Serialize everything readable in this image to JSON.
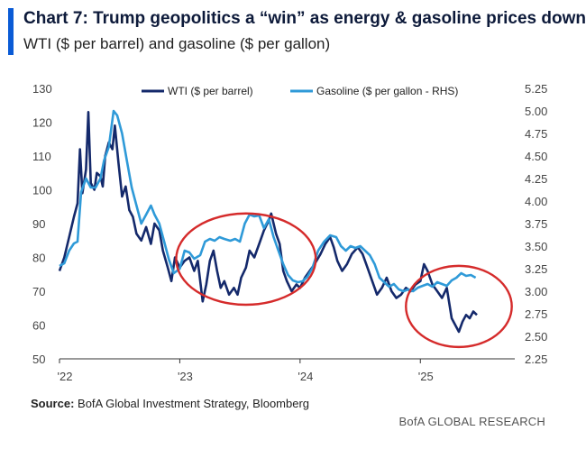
{
  "header": {
    "title": "Chart 7: Trump geopolitics a “win” as energy & gasoline prices down",
    "subtitle": "WTI ($ per barrel) and gasoline ($ per gallon)"
  },
  "footer": {
    "source_label": "Source:",
    "source_text": " BofA Global Investment Strategy, Bloomberg",
    "credit": "BofA GLOBAL RESEARCH"
  },
  "colors": {
    "accent": "#0a5bd6",
    "wti": "#14296b",
    "gasoline": "#2f9ad8",
    "ellipse": "#d52b2b"
  },
  "chart_data": {
    "type": "line",
    "title": "Chart 7: Trump geopolitics a “win” as energy & gasoline prices down",
    "subtitle": "WTI ($ per barrel) and gasoline ($ per gallon)",
    "x_ticks": [
      {
        "label": "'22",
        "t": 2022.0
      },
      {
        "label": "'23",
        "t": 2023.0
      },
      {
        "label": "'24",
        "t": 2024.0
      },
      {
        "label": "'25",
        "t": 2025.0
      }
    ],
    "x_range": [
      2022.0,
      2025.65
    ],
    "y_left": {
      "label": "WTI ($ per barrel)",
      "range": [
        50,
        130
      ],
      "ticks": [
        "130",
        "120",
        "110",
        "100",
        "90",
        "80",
        "70",
        "60",
        "50"
      ]
    },
    "y_right": {
      "label": "Gasoline ($ per gallon - RHS)",
      "range": [
        2.25,
        5.25
      ],
      "ticks": [
        "5.25",
        "5.00",
        "4.75",
        "4.50",
        "4.25",
        "4.00",
        "3.75",
        "3.50",
        "3.25",
        "3.00",
        "2.75",
        "2.50",
        "2.25"
      ]
    },
    "legend": {
      "position": "top",
      "entries": [
        "WTI ($ per barrel)",
        "Gasoline ($ per gallon - RHS)"
      ]
    },
    "series": [
      {
        "name": "WTI ($ per barrel)",
        "axis": "left",
        "points": [
          [
            2022.0,
            76
          ],
          [
            2022.04,
            80
          ],
          [
            2022.08,
            86
          ],
          [
            2022.12,
            92
          ],
          [
            2022.15,
            96
          ],
          [
            2022.17,
            112
          ],
          [
            2022.19,
            99
          ],
          [
            2022.22,
            106
          ],
          [
            2022.24,
            123
          ],
          [
            2022.26,
            102
          ],
          [
            2022.29,
            100
          ],
          [
            2022.31,
            105
          ],
          [
            2022.34,
            104
          ],
          [
            2022.36,
            101
          ],
          [
            2022.38,
            110
          ],
          [
            2022.41,
            114
          ],
          [
            2022.44,
            112
          ],
          [
            2022.46,
            119
          ],
          [
            2022.49,
            108
          ],
          [
            2022.52,
            98
          ],
          [
            2022.55,
            101
          ],
          [
            2022.58,
            94
          ],
          [
            2022.61,
            92
          ],
          [
            2022.64,
            87
          ],
          [
            2022.68,
            85
          ],
          [
            2022.72,
            89
          ],
          [
            2022.76,
            84
          ],
          [
            2022.79,
            90
          ],
          [
            2022.83,
            88
          ],
          [
            2022.86,
            82
          ],
          [
            2022.9,
            77
          ],
          [
            2022.93,
            73
          ],
          [
            2022.96,
            80
          ],
          [
            2023.0,
            77
          ],
          [
            2023.04,
            79
          ],
          [
            2023.08,
            80
          ],
          [
            2023.12,
            76
          ],
          [
            2023.15,
            79
          ],
          [
            2023.19,
            67
          ],
          [
            2023.22,
            72
          ],
          [
            2023.25,
            79
          ],
          [
            2023.28,
            82
          ],
          [
            2023.31,
            76
          ],
          [
            2023.34,
            71
          ],
          [
            2023.37,
            73
          ],
          [
            2023.41,
            69
          ],
          [
            2023.45,
            71
          ],
          [
            2023.48,
            69
          ],
          [
            2023.51,
            74
          ],
          [
            2023.55,
            77
          ],
          [
            2023.58,
            82
          ],
          [
            2023.62,
            80
          ],
          [
            2023.66,
            84
          ],
          [
            2023.7,
            88
          ],
          [
            2023.74,
            91
          ],
          [
            2023.76,
            93
          ],
          [
            2023.8,
            87
          ],
          [
            2023.83,
            84
          ],
          [
            2023.86,
            76
          ],
          [
            2023.89,
            73
          ],
          [
            2023.93,
            70
          ],
          [
            2023.97,
            72
          ],
          [
            2024.0,
            71
          ],
          [
            2024.04,
            74
          ],
          [
            2024.08,
            76
          ],
          [
            2024.12,
            78
          ],
          [
            2024.17,
            81
          ],
          [
            2024.21,
            84
          ],
          [
            2024.25,
            86
          ],
          [
            2024.28,
            83
          ],
          [
            2024.31,
            79
          ],
          [
            2024.35,
            76
          ],
          [
            2024.39,
            78
          ],
          [
            2024.43,
            81
          ],
          [
            2024.48,
            83
          ],
          [
            2024.52,
            81
          ],
          [
            2024.56,
            77
          ],
          [
            2024.6,
            73
          ],
          [
            2024.64,
            69
          ],
          [
            2024.68,
            71
          ],
          [
            2024.72,
            74
          ],
          [
            2024.76,
            70
          ],
          [
            2024.8,
            68
          ],
          [
            2024.84,
            69
          ],
          [
            2024.88,
            71
          ],
          [
            2024.92,
            70
          ],
          [
            2024.96,
            72
          ],
          [
            2025.0,
            73
          ],
          [
            2025.03,
            78
          ],
          [
            2025.06,
            76
          ],
          [
            2025.1,
            72
          ],
          [
            2025.14,
            70
          ],
          [
            2025.18,
            68
          ],
          [
            2025.22,
            71
          ],
          [
            2025.26,
            62
          ],
          [
            2025.29,
            60
          ],
          [
            2025.32,
            58
          ],
          [
            2025.35,
            61
          ],
          [
            2025.38,
            63
          ],
          [
            2025.41,
            62
          ],
          [
            2025.44,
            64
          ],
          [
            2025.47,
            63
          ]
        ]
      },
      {
        "name": "Gasoline ($ per gallon - RHS)",
        "axis": "right",
        "points": [
          [
            2022.0,
            3.28
          ],
          [
            2022.04,
            3.31
          ],
          [
            2022.08,
            3.45
          ],
          [
            2022.12,
            3.53
          ],
          [
            2022.15,
            3.55
          ],
          [
            2022.18,
            4.1
          ],
          [
            2022.22,
            4.25
          ],
          [
            2022.26,
            4.15
          ],
          [
            2022.3,
            4.15
          ],
          [
            2022.34,
            4.25
          ],
          [
            2022.37,
            4.45
          ],
          [
            2022.41,
            4.6
          ],
          [
            2022.45,
            5.0
          ],
          [
            2022.48,
            4.95
          ],
          [
            2022.52,
            4.75
          ],
          [
            2022.56,
            4.45
          ],
          [
            2022.6,
            4.15
          ],
          [
            2022.64,
            3.95
          ],
          [
            2022.68,
            3.75
          ],
          [
            2022.72,
            3.85
          ],
          [
            2022.76,
            3.95
          ],
          [
            2022.79,
            3.85
          ],
          [
            2022.83,
            3.75
          ],
          [
            2022.87,
            3.55
          ],
          [
            2022.91,
            3.35
          ],
          [
            2022.95,
            3.2
          ],
          [
            2023.0,
            3.25
          ],
          [
            2023.04,
            3.45
          ],
          [
            2023.08,
            3.43
          ],
          [
            2023.12,
            3.36
          ],
          [
            2023.17,
            3.4
          ],
          [
            2023.21,
            3.55
          ],
          [
            2023.25,
            3.58
          ],
          [
            2023.29,
            3.56
          ],
          [
            2023.33,
            3.6
          ],
          [
            2023.37,
            3.58
          ],
          [
            2023.42,
            3.56
          ],
          [
            2023.46,
            3.58
          ],
          [
            2023.5,
            3.55
          ],
          [
            2023.54,
            3.75
          ],
          [
            2023.58,
            3.85
          ],
          [
            2023.62,
            3.83
          ],
          [
            2023.66,
            3.84
          ],
          [
            2023.7,
            3.7
          ],
          [
            2023.74,
            3.8
          ],
          [
            2023.78,
            3.6
          ],
          [
            2023.82,
            3.45
          ],
          [
            2023.86,
            3.3
          ],
          [
            2023.9,
            3.18
          ],
          [
            2023.94,
            3.12
          ],
          [
            2023.98,
            3.1
          ],
          [
            2024.02,
            3.11
          ],
          [
            2024.06,
            3.16
          ],
          [
            2024.1,
            3.25
          ],
          [
            2024.15,
            3.45
          ],
          [
            2024.2,
            3.55
          ],
          [
            2024.25,
            3.62
          ],
          [
            2024.3,
            3.6
          ],
          [
            2024.34,
            3.5
          ],
          [
            2024.38,
            3.45
          ],
          [
            2024.42,
            3.5
          ],
          [
            2024.46,
            3.48
          ],
          [
            2024.5,
            3.5
          ],
          [
            2024.54,
            3.45
          ],
          [
            2024.58,
            3.4
          ],
          [
            2024.62,
            3.3
          ],
          [
            2024.66,
            3.15
          ],
          [
            2024.7,
            3.1
          ],
          [
            2024.74,
            3.05
          ],
          [
            2024.78,
            3.08
          ],
          [
            2024.82,
            3.02
          ],
          [
            2024.86,
            3.0
          ],
          [
            2024.9,
            3.02
          ],
          [
            2024.94,
            3.0
          ],
          [
            2024.98,
            3.04
          ],
          [
            2025.02,
            3.06
          ],
          [
            2025.06,
            3.08
          ],
          [
            2025.1,
            3.05
          ],
          [
            2025.14,
            3.1
          ],
          [
            2025.18,
            3.08
          ],
          [
            2025.22,
            3.06
          ],
          [
            2025.26,
            3.12
          ],
          [
            2025.3,
            3.15
          ],
          [
            2025.34,
            3.2
          ],
          [
            2025.38,
            3.17
          ],
          [
            2025.42,
            3.18
          ],
          [
            2025.46,
            3.15
          ]
        ]
      }
    ],
    "annotations": [
      {
        "type": "ellipse",
        "x_center": 2023.55,
        "y_center": 79.5,
        "x_halfwidth": 0.58,
        "y_halfwidth": 13.5
      },
      {
        "type": "ellipse",
        "x_center": 2025.32,
        "y_center": 65.5,
        "x_halfwidth": 0.44,
        "y_halfwidth": 12.0
      }
    ]
  }
}
